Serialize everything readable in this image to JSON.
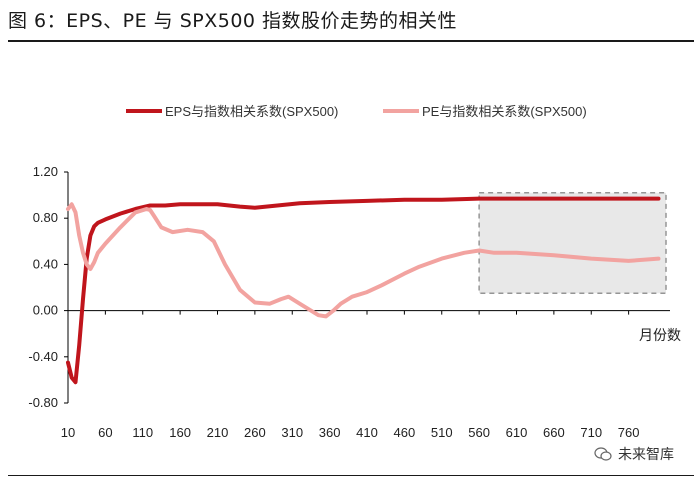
{
  "figure": {
    "title": "图 6：EPS、PE 与 SPX500 指数股价走势的相关性",
    "watermark": "未来智库"
  },
  "colors": {
    "eps": "#c0151c",
    "pe": "#f2a3a0",
    "highlight_fill": "#e6e6e6",
    "highlight_border": "#8a8a8a"
  },
  "chart_data": {
    "type": "line",
    "title": "",
    "xlabel": "月份数",
    "ylabel": "",
    "xlim": [
      10,
      810
    ],
    "ylim": [
      -0.8,
      1.2
    ],
    "xticks": [
      10,
      60,
      110,
      160,
      210,
      260,
      310,
      360,
      410,
      460,
      510,
      560,
      610,
      660,
      710,
      760
    ],
    "yticks": [
      1.2,
      0.8,
      0.4,
      0.0,
      -0.4,
      -0.8
    ],
    "ytick_labels": [
      "1.20",
      "0.80",
      "0.40",
      "0.00",
      "-0.40",
      "-0.80"
    ],
    "legend_position": "top",
    "highlight_range": {
      "x": [
        560,
        810
      ],
      "y": [
        0.15,
        1.02
      ]
    },
    "series": [
      {
        "name": "EPS与指数相关系数(SPX500)",
        "x": [
          10,
          15,
          20,
          25,
          30,
          35,
          40,
          45,
          50,
          60,
          80,
          100,
          120,
          140,
          160,
          180,
          210,
          240,
          260,
          290,
          320,
          360,
          410,
          460,
          510,
          560,
          610,
          660,
          710,
          760,
          800
        ],
        "y": [
          -0.45,
          -0.58,
          -0.62,
          -0.3,
          0.1,
          0.45,
          0.65,
          0.73,
          0.76,
          0.79,
          0.84,
          0.88,
          0.91,
          0.91,
          0.92,
          0.92,
          0.92,
          0.9,
          0.89,
          0.91,
          0.93,
          0.94,
          0.95,
          0.96,
          0.96,
          0.97,
          0.97,
          0.97,
          0.97,
          0.97,
          0.97
        ]
      },
      {
        "name": "PE与指数相关系数(SPX500)",
        "x": [
          10,
          15,
          20,
          25,
          30,
          35,
          40,
          45,
          50,
          60,
          80,
          100,
          115,
          120,
          125,
          135,
          150,
          170,
          190,
          205,
          220,
          240,
          260,
          280,
          295,
          305,
          320,
          335,
          345,
          355,
          365,
          375,
          390,
          410,
          430,
          460,
          480,
          510,
          540,
          560,
          580,
          610,
          660,
          710,
          760,
          800
        ],
        "y": [
          0.88,
          0.92,
          0.85,
          0.65,
          0.5,
          0.4,
          0.36,
          0.42,
          0.5,
          0.58,
          0.72,
          0.85,
          0.88,
          0.87,
          0.82,
          0.72,
          0.68,
          0.7,
          0.68,
          0.6,
          0.4,
          0.18,
          0.07,
          0.06,
          0.1,
          0.12,
          0.06,
          0.0,
          -0.04,
          -0.05,
          0.0,
          0.06,
          0.12,
          0.16,
          0.22,
          0.32,
          0.38,
          0.45,
          0.5,
          0.52,
          0.5,
          0.5,
          0.48,
          0.45,
          0.43,
          0.45
        ]
      }
    ]
  }
}
